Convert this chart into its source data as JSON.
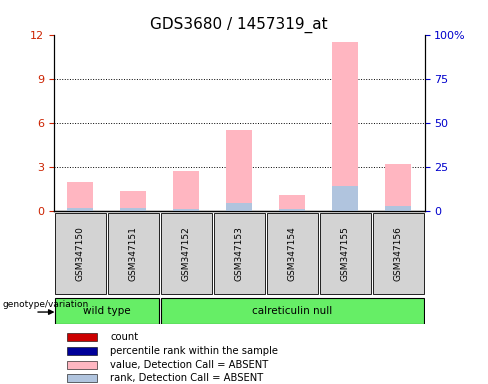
{
  "title": "GDS3680 / 1457319_at",
  "samples": [
    "GSM347150",
    "GSM347151",
    "GSM347152",
    "GSM347153",
    "GSM347154",
    "GSM347155",
    "GSM347156"
  ],
  "pink_values": [
    2.0,
    1.4,
    2.7,
    5.5,
    1.1,
    11.5,
    3.2
  ],
  "blue_values": [
    0.25,
    0.22,
    0.18,
    0.55,
    0.12,
    1.7,
    0.35
  ],
  "left_ylim": [
    0,
    12
  ],
  "right_ylim": [
    0,
    100
  ],
  "left_yticks": [
    0,
    3,
    6,
    9,
    12
  ],
  "right_yticks": [
    0,
    25,
    50,
    75,
    100
  ],
  "right_yticklabels": [
    "0",
    "25",
    "50",
    "75",
    "100%"
  ],
  "bar_width": 0.5,
  "pink_color": "#FFB6C1",
  "blue_color": "#B0C4DE",
  "group1_label": "wild type",
  "group2_label": "calreticulin null",
  "genotype_label": "genotype/variation",
  "legend_items": [
    {
      "color": "#CC0000",
      "label": "count"
    },
    {
      "color": "#000099",
      "label": "percentile rank within the sample"
    },
    {
      "color": "#FFB6C1",
      "label": "value, Detection Call = ABSENT"
    },
    {
      "color": "#B0C4DE",
      "label": "rank, Detection Call = ABSENT"
    }
  ],
  "bg_color": "#D3D3D3",
  "green_color": "#66EE66",
  "title_fontsize": 11,
  "tick_color_left": "#CC2200",
  "tick_color_right": "#0000CC"
}
